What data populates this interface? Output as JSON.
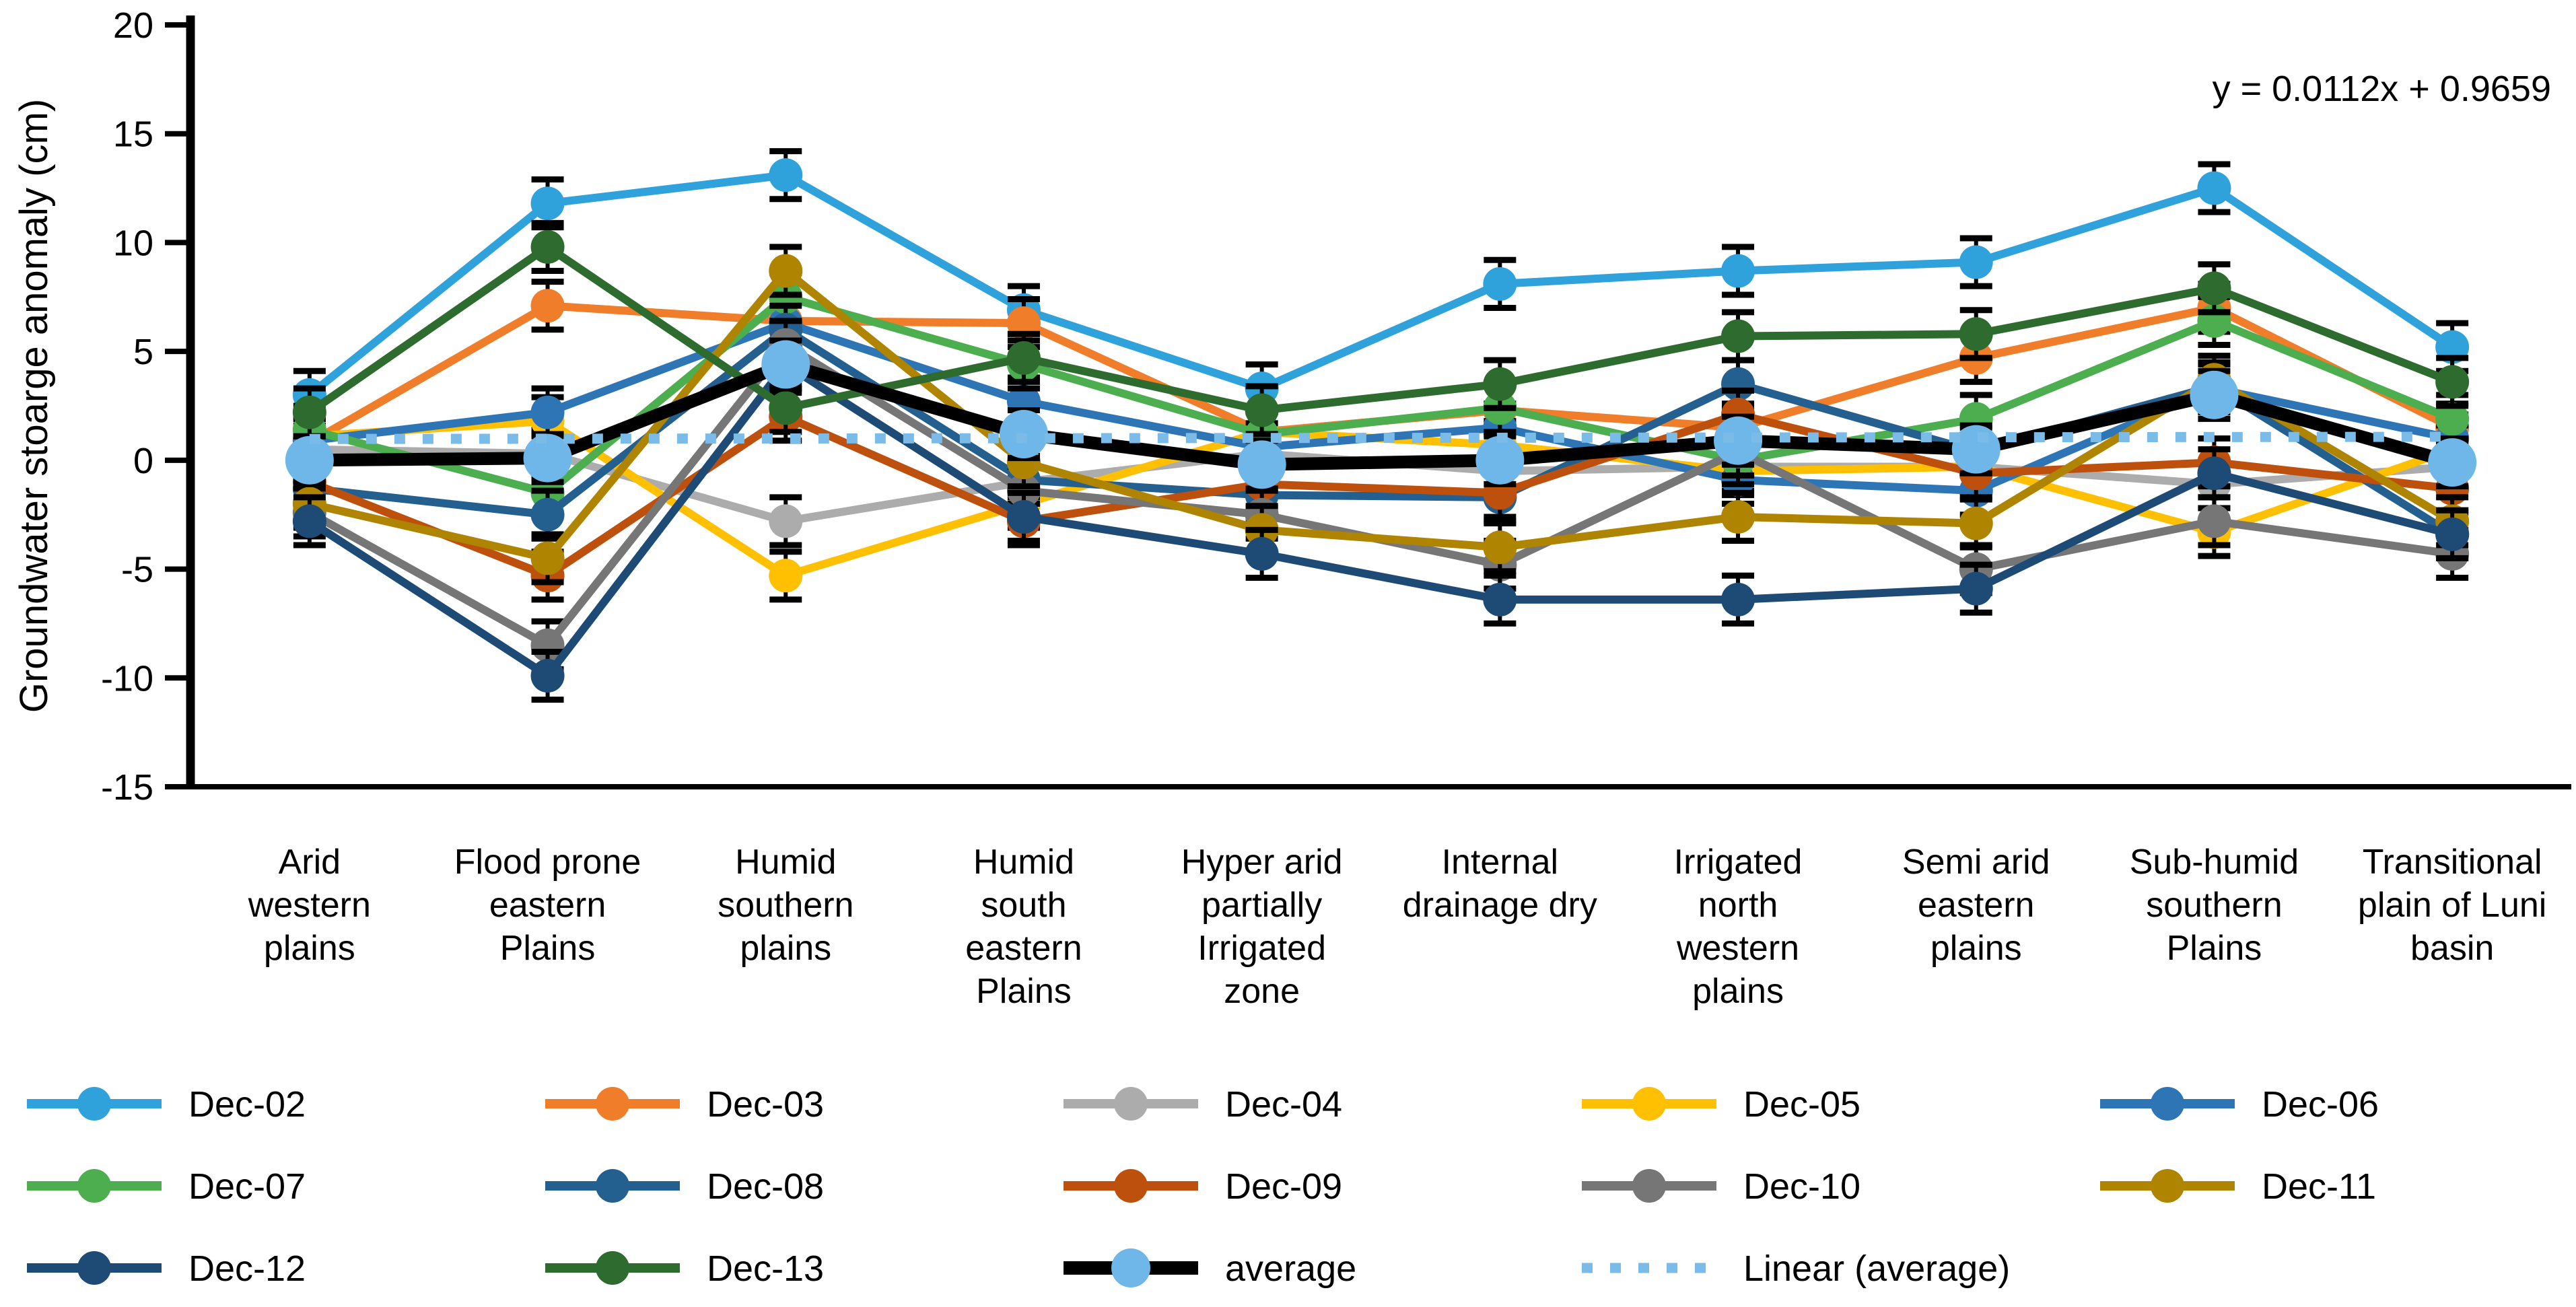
{
  "chart_data": {
    "type": "line",
    "title": "",
    "ylabel": "Groundwater stoarge anomaly (cm)",
    "equation_label": "y = 0.0112x + 0.9659",
    "ylim": [
      -15,
      20
    ],
    "yticks": [
      20,
      15,
      10,
      5,
      0,
      -5,
      -10,
      -15
    ],
    "grid": false,
    "legend_position": "bottom",
    "error_bar": 1.1,
    "categories": [
      "Arid western plains",
      "Flood prone eastern Plains",
      "Humid southern plains",
      "Humid south eastern Plains",
      "Hyper arid partially Irrigated zone",
      "Internal drainage dry",
      "Irrigated north western plains",
      "Semi arid eastern plains",
      "Sub-humid southern Plains",
      "Transitional plain of Luni basin"
    ],
    "categories_wrapped": [
      [
        "Arid",
        "western",
        "plains"
      ],
      [
        "Flood prone",
        "eastern",
        "Plains"
      ],
      [
        "Humid",
        "southern",
        "plains"
      ],
      [
        "Humid",
        "south",
        "eastern",
        "Plains"
      ],
      [
        "Hyper arid",
        "partially",
        "Irrigated",
        "zone"
      ],
      [
        "Internal",
        "drainage dry"
      ],
      [
        "Irrigated",
        "north",
        "western",
        "plains"
      ],
      [
        "Semi arid",
        "eastern",
        "plains"
      ],
      [
        "Sub-humid",
        "southern",
        "Plains"
      ],
      [
        "Transitional",
        "plain of Luni",
        "basin"
      ]
    ],
    "series": [
      {
        "name": "Dec-02",
        "color": "#2FA2DC",
        "values": [
          3.0,
          11.8,
          13.1,
          6.9,
          3.3,
          8.1,
          8.7,
          9.1,
          12.5,
          5.2
        ]
      },
      {
        "name": "Dec-03",
        "color": "#F07D2A",
        "values": [
          0.8,
          7.1,
          6.4,
          6.3,
          1.3,
          2.3,
          1.5,
          4.7,
          7.0,
          1.5
        ]
      },
      {
        "name": "Dec-04",
        "color": "#ACACAC",
        "values": [
          0.5,
          0.3,
          -2.8,
          -1.0,
          0.3,
          -0.5,
          -0.3,
          -0.3,
          -1.1,
          -0.3
        ]
      },
      {
        "name": "Dec-05",
        "color": "#FFC001",
        "values": [
          1.1,
          1.8,
          -5.3,
          -2.0,
          1.3,
          0.7,
          -0.5,
          -0.3,
          -3.3,
          0.5
        ]
      },
      {
        "name": "Dec-06",
        "color": "#2E75B6",
        "values": [
          0.9,
          2.2,
          6.3,
          2.7,
          0.6,
          1.5,
          -0.9,
          -1.4,
          3.3,
          1.0
        ]
      },
      {
        "name": "Dec-07",
        "color": "#4CAE4F",
        "values": [
          1.4,
          -1.5,
          7.5,
          4.4,
          1.2,
          2.4,
          0.0,
          1.9,
          6.4,
          1.9
        ]
      },
      {
        "name": "Dec-08",
        "color": "#24608F",
        "values": [
          -1.3,
          -2.5,
          6.0,
          -0.9,
          -1.6,
          -1.7,
          3.5,
          0.4,
          3.4,
          -3.4
        ]
      },
      {
        "name": "Dec-09",
        "color": "#BE500E",
        "values": [
          -1.0,
          -5.3,
          2.0,
          -2.8,
          -1.1,
          -1.5,
          2.1,
          -0.6,
          -0.1,
          -1.3
        ]
      },
      {
        "name": "Dec-10",
        "color": "#767676",
        "values": [
          -2.4,
          -8.5,
          5.3,
          -1.4,
          -2.5,
          -4.8,
          0.4,
          -5.0,
          -2.8,
          -4.3
        ]
      },
      {
        "name": "Dec-11",
        "color": "#AE8400",
        "values": [
          -2.0,
          -4.5,
          8.7,
          -0.1,
          -3.2,
          -4.0,
          -2.6,
          -2.9,
          3.7,
          -2.8
        ]
      },
      {
        "name": "Dec-12",
        "color": "#1E4B75",
        "values": [
          -2.8,
          -9.9,
          4.4,
          -2.6,
          -4.3,
          -6.4,
          -6.4,
          -5.9,
          -0.6,
          -3.4
        ]
      },
      {
        "name": "Dec-13",
        "color": "#2E6B2E",
        "values": [
          2.2,
          9.8,
          2.4,
          4.7,
          2.3,
          3.5,
          5.7,
          5.8,
          7.9,
          3.6
        ]
      },
      {
        "name": "average",
        "color": "#000000",
        "marker_color": "#6EB7E8",
        "is_average": true,
        "values": [
          0.0,
          0.1,
          4.4,
          1.2,
          -0.2,
          0.0,
          0.9,
          0.5,
          3.0,
          -0.1
        ]
      }
    ],
    "trendline": {
      "name": "Linear (average)",
      "color": "#7ABBE8",
      "slope": 0.0112,
      "intercept": 0.9659,
      "equation": "y = 0.0112x + 0.9659"
    },
    "legend": [
      [
        "Dec-02",
        "Dec-03",
        "Dec-04",
        "Dec-05",
        "Dec-06"
      ],
      [
        "Dec-07",
        "Dec-08",
        "Dec-09",
        "Dec-10",
        "Dec-11"
      ],
      [
        "Dec-12",
        "Dec-13",
        "average",
        "Linear (average)"
      ]
    ]
  }
}
